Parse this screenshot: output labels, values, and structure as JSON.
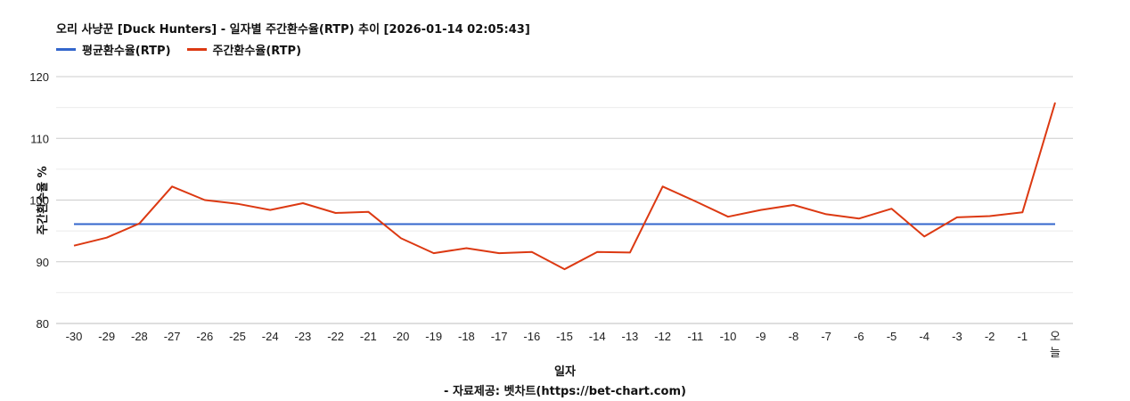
{
  "chart_data": {
    "type": "line",
    "title": "오리 사냥꾼 [Duck Hunters] - 일자별 주간환수율(RTP) 추이 [2026-01-14 02:05:43]",
    "xlabel": "일자",
    "ylabel": "주간환수율 %",
    "ylim": [
      80,
      120
    ],
    "yticks": [
      80,
      90,
      100,
      110,
      120
    ],
    "grid": true,
    "legend_position": "top-left",
    "categories": [
      "-30",
      "-29",
      "-28",
      "-27",
      "-26",
      "-25",
      "-24",
      "-23",
      "-22",
      "-21",
      "-20",
      "-19",
      "-18",
      "-17",
      "-16",
      "-15",
      "-14",
      "-13",
      "-12",
      "-11",
      "-10",
      "-9",
      "-8",
      "-7",
      "-6",
      "-5",
      "-4",
      "-3",
      "-2",
      "-1",
      "오늘"
    ],
    "series": [
      {
        "name": "평균환수율(RTP)",
        "color": "#3366cc",
        "values": [
          96.1,
          96.1,
          96.1,
          96.1,
          96.1,
          96.1,
          96.1,
          96.1,
          96.1,
          96.1,
          96.1,
          96.1,
          96.1,
          96.1,
          96.1,
          96.1,
          96.1,
          96.1,
          96.1,
          96.1,
          96.1,
          96.1,
          96.1,
          96.1,
          96.1,
          96.1,
          96.1,
          96.1,
          96.1,
          96.1,
          96.1
        ]
      },
      {
        "name": "주간환수율(RTP)",
        "color": "#dc3912",
        "values": [
          92.6,
          93.9,
          96.2,
          102.2,
          100.0,
          99.4,
          98.4,
          99.5,
          97.9,
          98.1,
          93.8,
          91.4,
          92.2,
          91.4,
          91.6,
          88.8,
          91.6,
          91.5,
          102.2,
          99.8,
          97.3,
          98.4,
          99.2,
          97.7,
          97.0,
          98.6,
          94.1,
          97.2,
          97.4,
          98.0,
          115.8
        ]
      }
    ],
    "source": "- 자료제공: 벳차트(https://bet-chart.com)"
  },
  "header": {
    "title": "오리 사냥꾼 [Duck Hunters] - 일자별 주간환수율(RTP) 추이 [2026-01-14 02:05:43]",
    "legend": [
      {
        "label": "평균환수율(RTP)",
        "color": "#3366cc"
      },
      {
        "label": "주간환수율(RTP)",
        "color": "#dc3912"
      }
    ]
  },
  "axes": {
    "ylabel": "주간환수율 %",
    "xlabel": "일자"
  },
  "footer": {
    "source": "- 자료제공: 벳차트(https://bet-chart.com)"
  }
}
